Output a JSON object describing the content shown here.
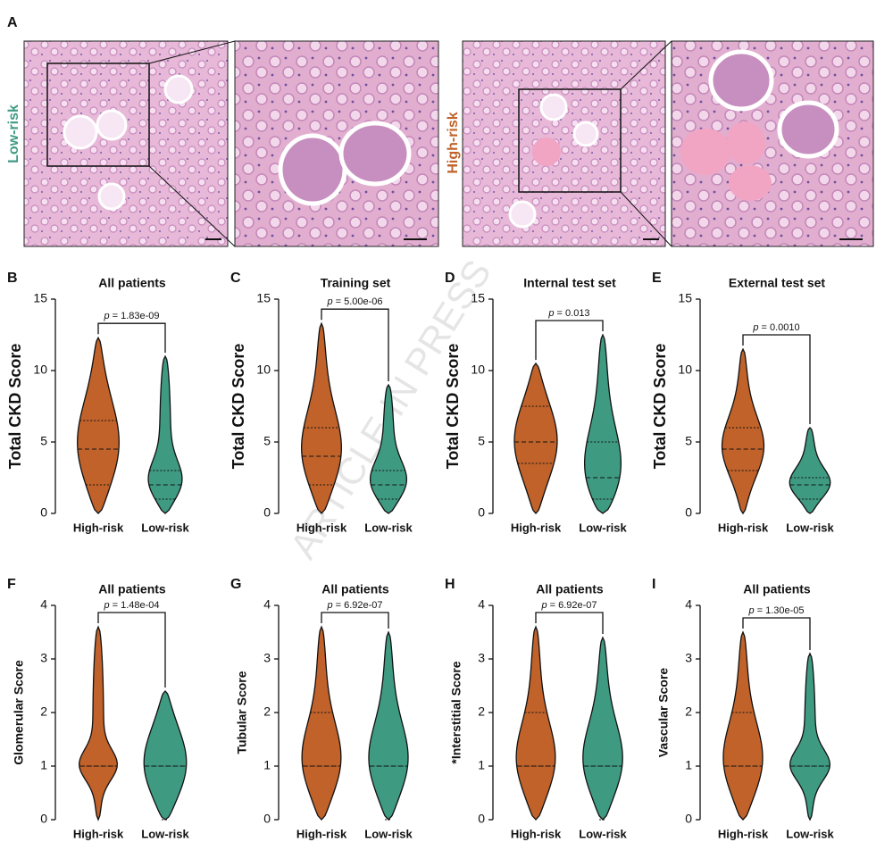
{
  "panel_a": {
    "label": "A",
    "left_group": "Low-risk",
    "right_group": "High-risk"
  },
  "watermark": "ARTICLE IN PRESS",
  "chart_data": [
    {
      "type": "violin",
      "panel": "B",
      "title": "All patients",
      "ylabel": "Total CKD Score",
      "categories": [
        "High-risk",
        "Low-risk"
      ],
      "colors": [
        "#c0622a",
        "#3f9a82"
      ],
      "stats": [
        {
          "min": 0,
          "q1": 2,
          "median": 4.5,
          "q3": 6.5,
          "max": 12.3
        },
        {
          "min": 0,
          "q1": 1,
          "median": 2,
          "q3": 3,
          "max": 11
        }
      ],
      "annotation": {
        "symbol": "p",
        "text": "= 1.83e-09"
      },
      "ylim": [
        0,
        15
      ],
      "yticks": [
        0,
        5,
        10,
        15
      ]
    },
    {
      "type": "violin",
      "panel": "C",
      "title": "Training set",
      "ylabel": "Total CKD Score",
      "categories": [
        "High-risk",
        "Low-risk"
      ],
      "colors": [
        "#c0622a",
        "#3f9a82"
      ],
      "stats": [
        {
          "min": 0,
          "q1": 2,
          "median": 4,
          "q3": 6,
          "max": 13.3
        },
        {
          "min": 0,
          "q1": 1,
          "median": 2,
          "q3": 3,
          "max": 9
        }
      ],
      "annotation": {
        "symbol": "p",
        "text": "= 5.00e-06"
      },
      "ylim": [
        0,
        15
      ],
      "yticks": [
        0,
        5,
        10,
        15
      ]
    },
    {
      "type": "violin",
      "panel": "D",
      "title": "Internal test set",
      "ylabel": "Total CKD Score",
      "categories": [
        "High-risk",
        "Low-risk"
      ],
      "colors": [
        "#c0622a",
        "#3f9a82"
      ],
      "stats": [
        {
          "min": 0,
          "q1": 3.5,
          "median": 5,
          "q3": 7.5,
          "max": 10.5
        },
        {
          "min": 0,
          "q1": 1,
          "median": 2.5,
          "q3": 5,
          "max": 12.5
        }
      ],
      "annotation": {
        "symbol": "p",
        "text": "= 0.013"
      },
      "ylim": [
        0,
        15
      ],
      "yticks": [
        0,
        5,
        10,
        15
      ]
    },
    {
      "type": "violin",
      "panel": "E",
      "title": "External test set",
      "ylabel": "Total CKD Score",
      "categories": [
        "High-risk",
        "Low-risk"
      ],
      "colors": [
        "#c0622a",
        "#3f9a82"
      ],
      "stats": [
        {
          "min": 0,
          "q1": 3,
          "median": 4.5,
          "q3": 6,
          "max": 11.5
        },
        {
          "min": 0,
          "q1": 1,
          "median": 2,
          "q3": 2.5,
          "max": 6
        }
      ],
      "annotation": {
        "symbol": "p",
        "text": "= 0.0010"
      },
      "ylim": [
        0,
        15
      ],
      "yticks": [
        0,
        5,
        10,
        15
      ]
    },
    {
      "type": "violin",
      "panel": "F",
      "title": "All patients",
      "ylabel": "Glomerular Score",
      "categories": [
        "High-risk",
        "Low-risk"
      ],
      "colors": [
        "#c0622a",
        "#3f9a82"
      ],
      "stats": [
        {
          "min": 0,
          "q1": 1,
          "median": 1,
          "q3": 1,
          "max": 3.6
        },
        {
          "min": 0,
          "q1": 0,
          "median": 1,
          "q3": 1,
          "max": 2.4
        }
      ],
      "annotation": {
        "symbol": "p",
        "text": "= 1.48e-04"
      },
      "ylim": [
        0,
        4
      ],
      "yticks": [
        0,
        1,
        2,
        3,
        4
      ]
    },
    {
      "type": "violin",
      "panel": "G",
      "title": "All patients",
      "ylabel": "Tubular Score",
      "categories": [
        "High-risk",
        "Low-risk"
      ],
      "colors": [
        "#c0622a",
        "#3f9a82"
      ],
      "stats": [
        {
          "min": 0,
          "q1": 1,
          "median": 1,
          "q3": 2,
          "max": 3.6
        },
        {
          "min": 0,
          "q1": 0,
          "median": 1,
          "q3": 1,
          "max": 3.5
        }
      ],
      "annotation": {
        "symbol": "p",
        "text": "= 6.92e-07"
      },
      "ylim": [
        0,
        4
      ],
      "yticks": [
        0,
        1,
        2,
        3,
        4
      ]
    },
    {
      "type": "violin",
      "panel": "H",
      "title": "All patients",
      "ylabel": "*Interstitial Score",
      "categories": [
        "High-risk",
        "Low-risk"
      ],
      "colors": [
        "#c0622a",
        "#3f9a82"
      ],
      "stats": [
        {
          "min": 0,
          "q1": 1,
          "median": 1,
          "q3": 2,
          "max": 3.6
        },
        {
          "min": 0,
          "q1": 0,
          "median": 1,
          "q3": 1,
          "max": 3.4
        }
      ],
      "annotation": {
        "symbol": "p",
        "text": "= 6.92e-07"
      },
      "ylim": [
        0,
        4
      ],
      "yticks": [
        0,
        1,
        2,
        3,
        4
      ]
    },
    {
      "type": "violin",
      "panel": "I",
      "title": "All patients",
      "ylabel": "Vascular Score",
      "categories": [
        "High-risk",
        "Low-risk"
      ],
      "colors": [
        "#c0622a",
        "#3f9a82"
      ],
      "stats": [
        {
          "min": 0,
          "q1": 1,
          "median": 1,
          "q3": 2,
          "max": 3.5
        },
        {
          "min": 0,
          "q1": 1,
          "median": 1,
          "q3": 1,
          "max": 3.1
        }
      ],
      "annotation": {
        "symbol": "p",
        "text": "= 1.30e-05"
      },
      "ylim": [
        0,
        4
      ],
      "yticks": [
        0,
        1,
        2,
        3,
        4
      ]
    }
  ]
}
